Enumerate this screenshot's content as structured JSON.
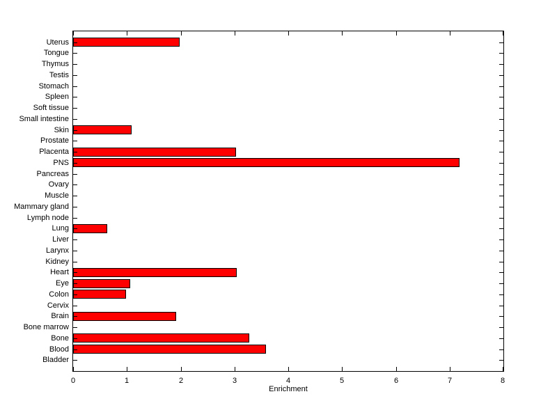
{
  "figure": {
    "background_color": "#FFFFFF",
    "axes_color": "#000000",
    "text_color": "#000000"
  },
  "chart_data": {
    "type": "bar",
    "orientation": "horizontal",
    "title": "",
    "xlabel": "Enrichment",
    "ylabel": "",
    "xlim": [
      0,
      8
    ],
    "xticks": [
      "0",
      "1",
      "2",
      "3",
      "4",
      "5",
      "6",
      "7",
      "8"
    ],
    "grid": false,
    "legend": "none",
    "bar_color": "#FF0000",
    "bar_edge_color": "#000000",
    "categories": [
      "Uterus",
      "Tongue",
      "Thymus",
      "Testis",
      "Stomach",
      "Spleen",
      "Soft tissue",
      "Small intestine",
      "Skin",
      "Prostate",
      "Placenta",
      "PNS",
      "Pancreas",
      "Ovary",
      "Muscle",
      "Mammary gland",
      "Lymph node",
      "Lung",
      "Liver",
      "Larynx",
      "Kidney",
      "Heart",
      "Eye",
      "Colon",
      "Cervix",
      "Brain",
      "Bone marrow",
      "Bone",
      "Blood",
      "Bladder"
    ],
    "values": [
      1.98,
      0,
      0,
      0,
      0,
      0,
      0,
      0,
      1.09,
      0,
      3.03,
      7.19,
      0,
      0,
      0,
      0,
      0,
      0.63,
      0,
      0,
      0,
      3.04,
      1.06,
      0.99,
      0,
      1.92,
      0,
      3.27,
      3.59,
      0
    ]
  }
}
